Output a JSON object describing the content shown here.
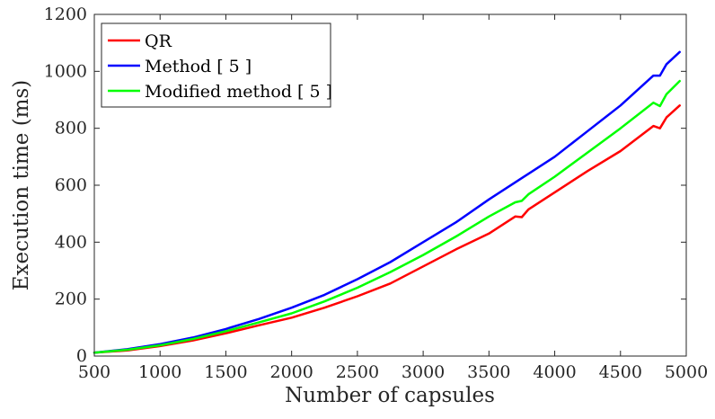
{
  "chart_data": {
    "type": "line",
    "xlabel": "Number of capsules",
    "ylabel": "Execution time (ms)",
    "xlim": [
      500,
      5000
    ],
    "ylim": [
      0,
      1200
    ],
    "xticks": [
      500,
      1000,
      1500,
      2000,
      2500,
      3000,
      3500,
      4000,
      4500,
      5000
    ],
    "yticks": [
      0,
      200,
      400,
      600,
      800,
      1000,
      1200
    ],
    "grid": false,
    "legend": "top-left",
    "x": [
      500,
      750,
      1000,
      1250,
      1500,
      1750,
      2000,
      2250,
      2500,
      2750,
      3000,
      3250,
      3500,
      3700,
      3750,
      3800,
      4000,
      4250,
      4500,
      4750,
      4800,
      4850,
      4950
    ],
    "series": [
      {
        "name": "QR",
        "color": "#ff0000",
        "values": [
          12,
          20,
          35,
          55,
          80,
          108,
          135,
          170,
          210,
          255,
          315,
          375,
          430,
          490,
          488,
          515,
          575,
          650,
          720,
          808,
          800,
          838,
          880
        ]
      },
      {
        "name": "Method [ 5 ]",
        "color": "#0000ff",
        "values": [
          12,
          24,
          42,
          65,
          95,
          130,
          170,
          215,
          270,
          330,
          400,
          470,
          550,
          610,
          625,
          640,
          700,
          790,
          880,
          985,
          985,
          1025,
          1068
        ]
      },
      {
        "name": "Modified method [ 5 ]",
        "color": "#00ff00",
        "values": [
          12,
          22,
          38,
          60,
          87,
          118,
          150,
          192,
          240,
          295,
          355,
          420,
          490,
          540,
          545,
          568,
          630,
          715,
          800,
          890,
          878,
          920,
          966
        ]
      }
    ]
  }
}
